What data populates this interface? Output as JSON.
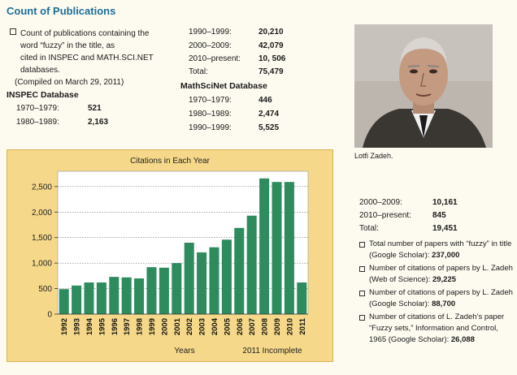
{
  "header": {
    "title": "Count of Publications"
  },
  "intro": {
    "lines": [
      "Count of publications containing the",
      "word “fuzzy” in the title, as",
      "cited in INSPEC and MATH.SCI.NET",
      "databases."
    ],
    "compiled": "(Compiled on March 29, 2011)"
  },
  "inspec": {
    "heading": "INSPEC Database",
    "rows": [
      {
        "label": "1970–1979:",
        "value": "521"
      },
      {
        "label": "1980–1989:",
        "value": "2,163"
      },
      {
        "label": "1990–1999:",
        "value": "20,210"
      },
      {
        "label": "2000–2009:",
        "value": "42,079"
      },
      {
        "label": "2010–present:",
        "value": "10, 506"
      },
      {
        "label": "Total:",
        "value": "75,479"
      }
    ]
  },
  "mathscinet": {
    "heading": "MathSciNet Database",
    "rows": [
      {
        "label": "1970–1979:",
        "value": "446"
      },
      {
        "label": "1980–1989:",
        "value": "2,474"
      },
      {
        "label": "1990–1999:",
        "value": "5,525"
      },
      {
        "label": "2000–2009:",
        "value": "10,161"
      },
      {
        "label": "2010–present:",
        "value": "845"
      },
      {
        "label": "Total:",
        "value": "19,451"
      }
    ]
  },
  "photo_caption": "Lotfi Zadeh.",
  "facts": [
    {
      "text": "Total number of papers with “fuzzy” in title (Google Scholar): ",
      "value": "237,000"
    },
    {
      "text": "Number of citations of papers by L. Zadeh (Web of Science): ",
      "value": "29,225"
    },
    {
      "text": "Number of citations of papers by L. Zadeh (Google Scholar): ",
      "value": "88,700"
    },
    {
      "text": "Number of citations of L. Zadeh’s paper “Fuzzy sets,” Information and Control, 1965 (Google Scholar): ",
      "value": "26,088"
    }
  ],
  "chart_data": {
    "type": "bar",
    "title": "Citations in Each Year",
    "xlabel": "Years",
    "note": "2011 Incomplete",
    "ylabel": "",
    "ylim": [
      0,
      2800
    ],
    "yticks": [
      0,
      500,
      1000,
      1500,
      2000,
      2500
    ],
    "ytick_labels": [
      "0",
      "500",
      "1,000",
      "1,500",
      "2,000",
      "2,500"
    ],
    "grid": true,
    "bar_color": "#2e8b5e",
    "categories": [
      "1992",
      "1993",
      "1994",
      "1995",
      "1996",
      "1997",
      "1998",
      "1999",
      "2000",
      "2001",
      "2002",
      "2003",
      "2004",
      "2005",
      "2006",
      "2007",
      "2008",
      "2009",
      "2010",
      "2011"
    ],
    "values": [
      490,
      560,
      620,
      620,
      730,
      720,
      700,
      920,
      910,
      1000,
      1400,
      1210,
      1310,
      1460,
      1690,
      1930,
      2660,
      2590,
      2590,
      620
    ]
  }
}
